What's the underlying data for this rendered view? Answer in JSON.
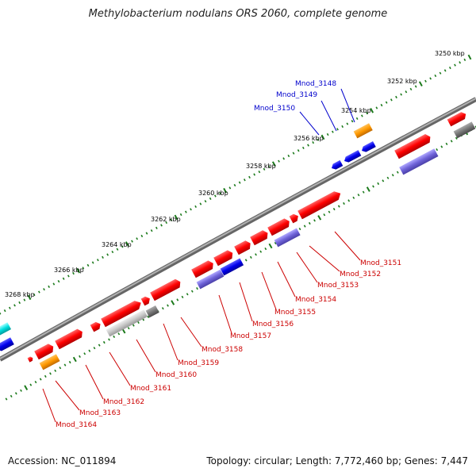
{
  "title": "Methylobacterium nodulans ORS 2060, complete genome",
  "accession": "Accession: NC_011894",
  "topology": "Topology: circular; Length: 7,772,460 bp; Genes: 7,447",
  "colors": {
    "backbone": "#808080",
    "ticks": "#1b7a1b",
    "plus_gene": "#ff0000",
    "minus_gene": "#0000ff",
    "rna": "#ff9900",
    "pseudo": "#808080",
    "label_red": "#cc0000",
    "label_blue": "#0000cc"
  },
  "kbp_labels": [
    "3250 kbp",
    "3252 kbp",
    "3254 kbp",
    "3256 kbp",
    "3258 kbp",
    "3260 kbp",
    "3262 kbp",
    "3264 kbp",
    "3266 kbp",
    "3268 kbp"
  ],
  "top_labels": [
    "Mnod_3148",
    "Mnod_3149",
    "Mnod_3150"
  ],
  "bottom_labels": [
    "Mnod_3151",
    "Mnod_3152",
    "Mnod_3153",
    "Mnod_3154",
    "Mnod_3155",
    "Mnod_3156",
    "Mnod_3157",
    "Mnod_3158",
    "Mnod_3159",
    "Mnod_3160",
    "Mnod_3161",
    "Mnod_3162",
    "Mnod_3163",
    "Mnod_3164"
  ]
}
